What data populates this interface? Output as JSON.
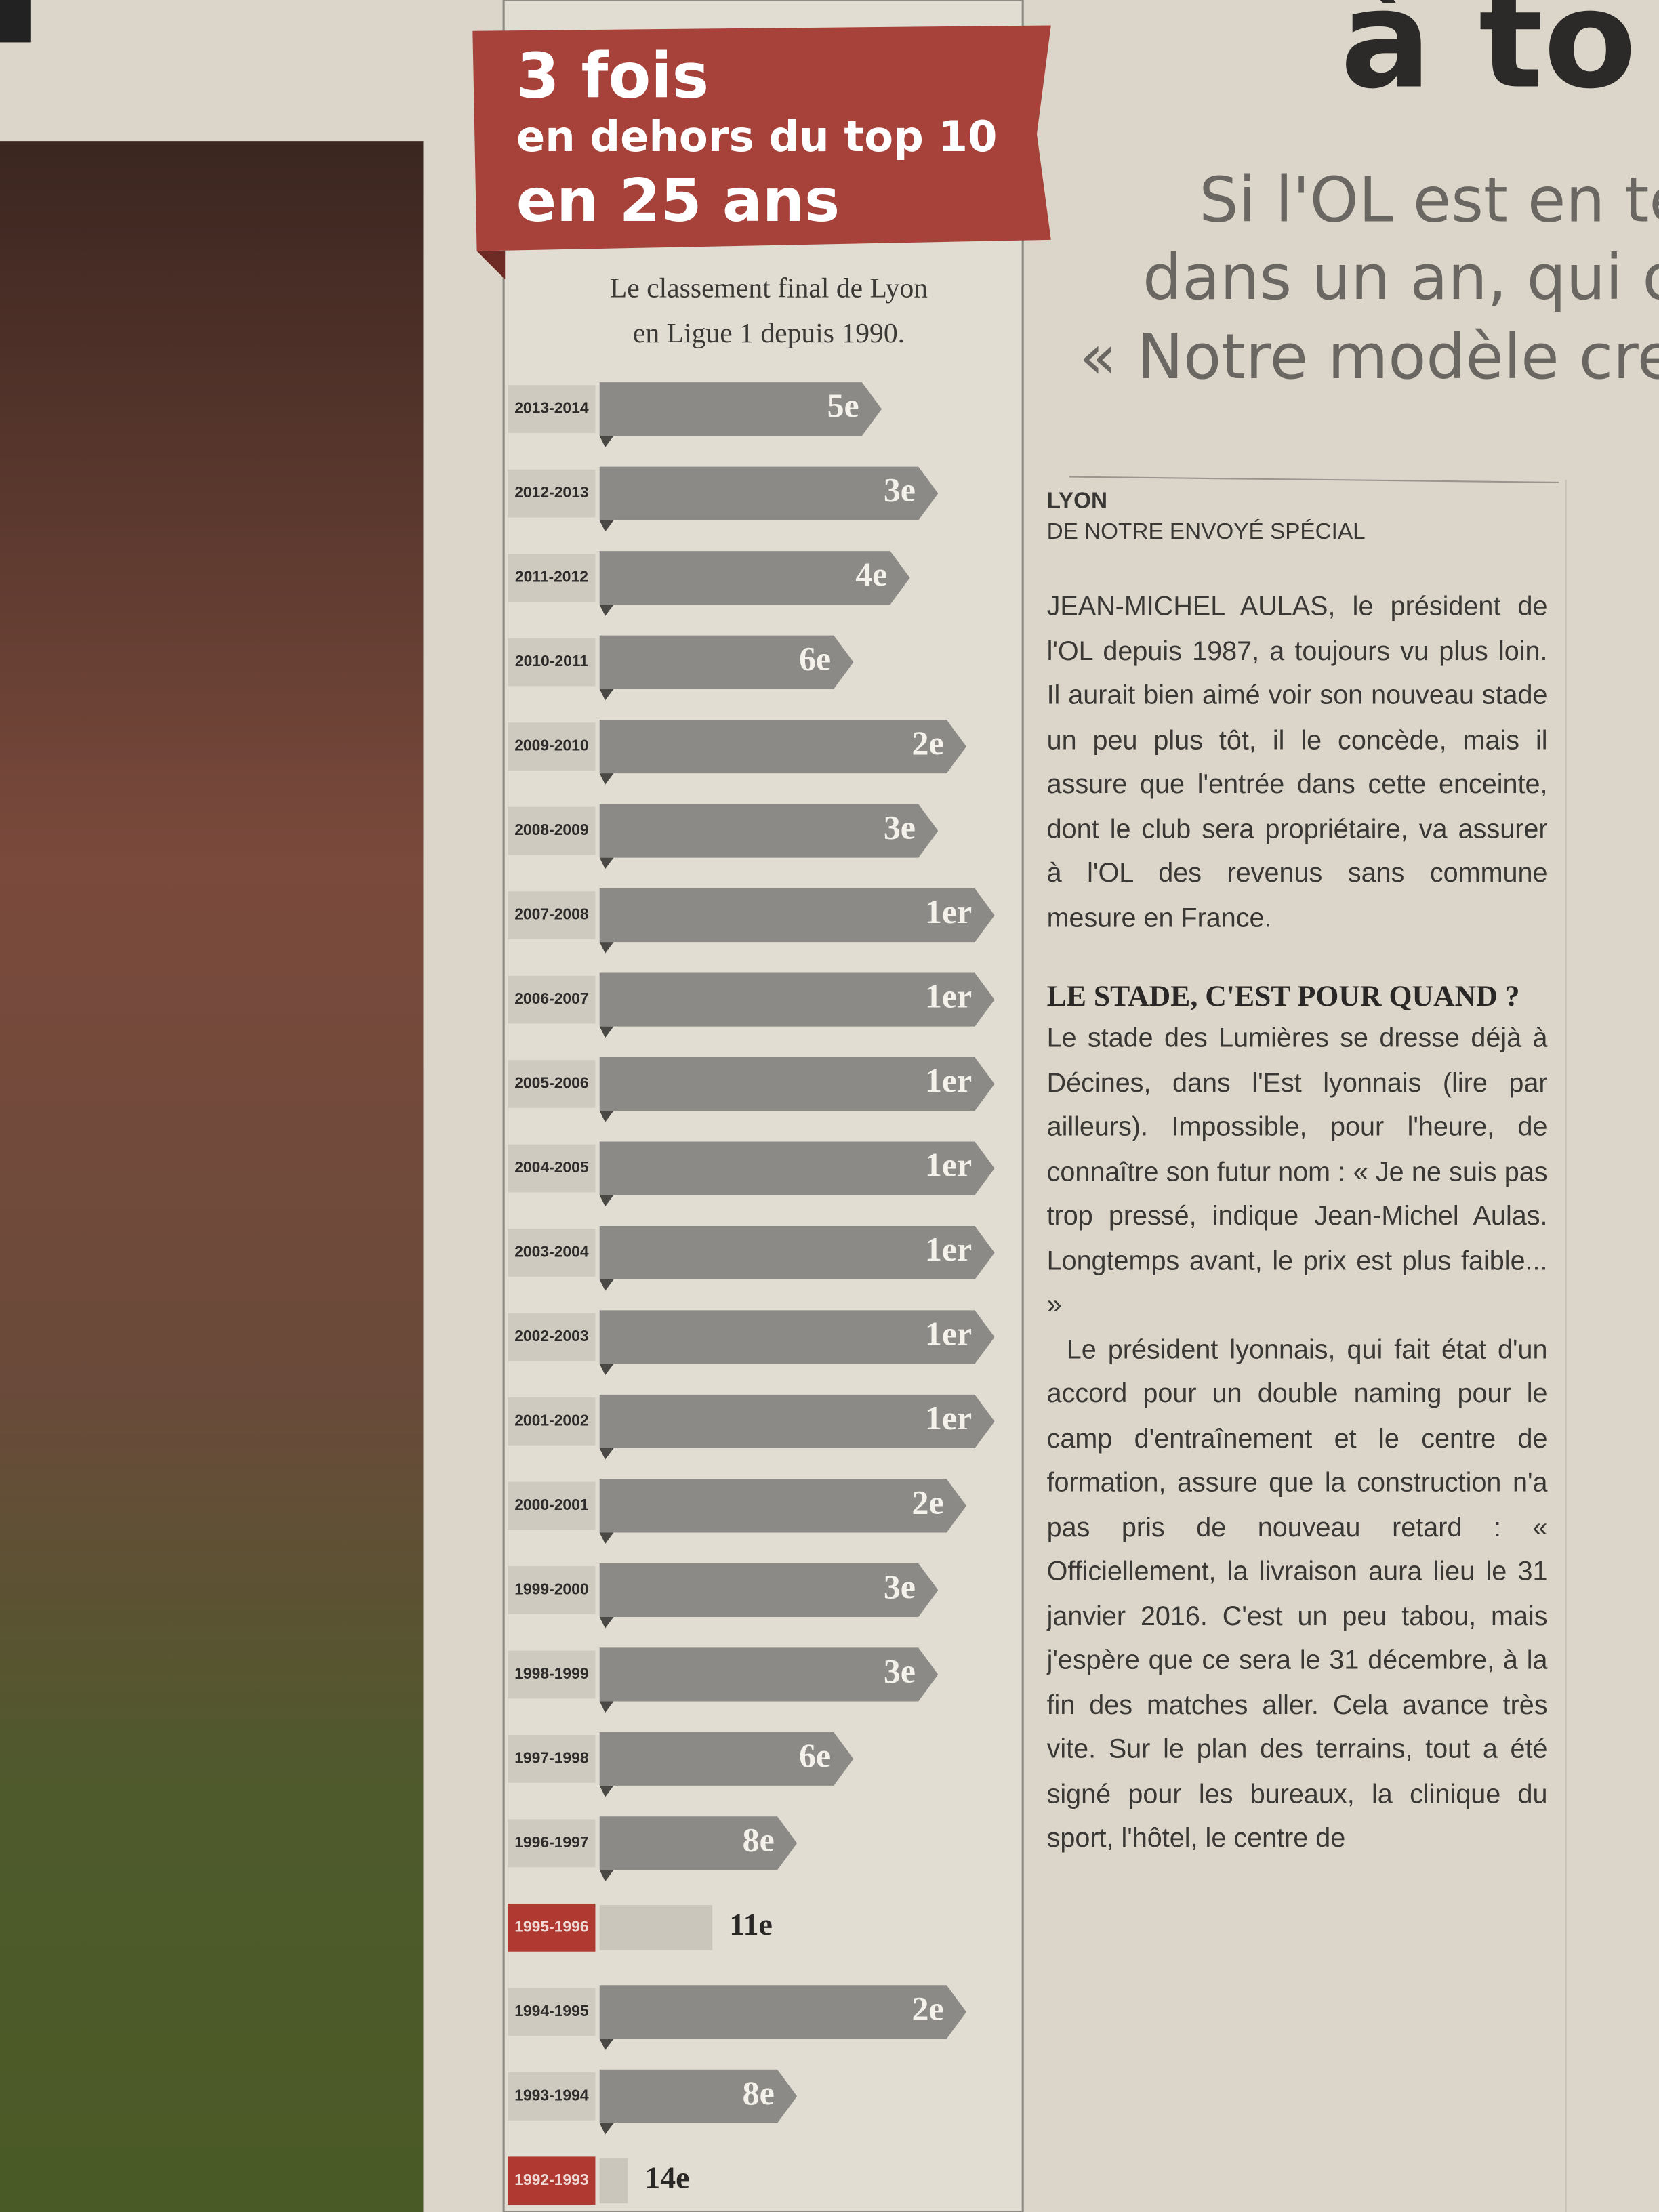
{
  "chart_data": {
    "type": "bar",
    "orientation": "horizontal",
    "title_lines": [
      "3 fois",
      "en dehors du top 10",
      "en 25 ans"
    ],
    "subtitle_lines": [
      "Le classement final de Lyon",
      "en Ligue 1 depuis 1990."
    ],
    "categories": [
      "2013-2014",
      "2012-2013",
      "2011-2012",
      "2010-2011",
      "2009-2010",
      "2008-2009",
      "2007-2008",
      "2006-2007",
      "2005-2006",
      "2004-2005",
      "2003-2004",
      "2002-2003",
      "2001-2002",
      "2000-2001",
      "1999-2000",
      "1998-1999",
      "1997-1998",
      "1996-1997",
      "1995-1996",
      "1994-1995",
      "1993-1994",
      "1992-1993"
    ],
    "values": [
      5,
      3,
      4,
      6,
      2,
      3,
      1,
      1,
      1,
      1,
      1,
      1,
      1,
      2,
      3,
      3,
      6,
      8,
      11,
      2,
      8,
      14
    ],
    "value_labels": [
      "5e",
      "3e",
      "4e",
      "6e",
      "2e",
      "3e",
      "1er",
      "1er",
      "1er",
      "1er",
      "1er",
      "1er",
      "1er",
      "2e",
      "3e",
      "3e",
      "6e",
      "8e",
      "11e",
      "2e",
      "8e",
      "14e"
    ],
    "xlim": [
      15,
      0
    ],
    "color": "#8c8a86",
    "highlight": [
      18,
      21
    ],
    "highlight_color": "#b03a32"
  },
  "article": {
    "headline": "à to",
    "deck": [
      "Si l'OL est en tête",
      "dans un an, qui dev",
      "« Notre modèle creus"
    ],
    "dateline": "LYON",
    "byline": "DE NOTRE ENVOYÉ SPÉCIAL",
    "paragraphs": [
      "JEAN-MICHEL AULAS, le président de l'OL depuis 1987, a toujours vu plus loin. Il aurait bien aimé voir son nouveau stade un peu plus tôt, il le concède, mais il assure que l'entrée dans cette enceinte, dont le club sera propriétaire, va assurer à l'OL des revenus sans commune mesure en France."
    ],
    "subheading": "LE STADE, C'EST POUR QUAND ?",
    "paragraphs2": [
      "Le stade des Lumières se dresse déjà à Décines, dans l'Est lyonnais (lire par ailleurs). Impossible, pour l'heure, de connaître son futur nom : « Je ne suis pas trop pressé, indique Jean-Michel Aulas. Longtemps avant, le prix est plus faible... »",
      "Le président lyonnais, qui fait état d'un accord pour un double naming pour le camp d'entraînement et le centre de formation, assure que la construction n'a pas pris de nouveau retard : « Officiellement, la livraison aura lieu le 31 janvier 2016. C'est un peu tabou, mais j'espère que ce sera le 31 décembre, à la fin des matches aller. Cela avance très vite. Sur le plan des terrains, tout a été signé pour les bureaux, la clinique du sport, l'hôtel, le centre de"
    ]
  }
}
